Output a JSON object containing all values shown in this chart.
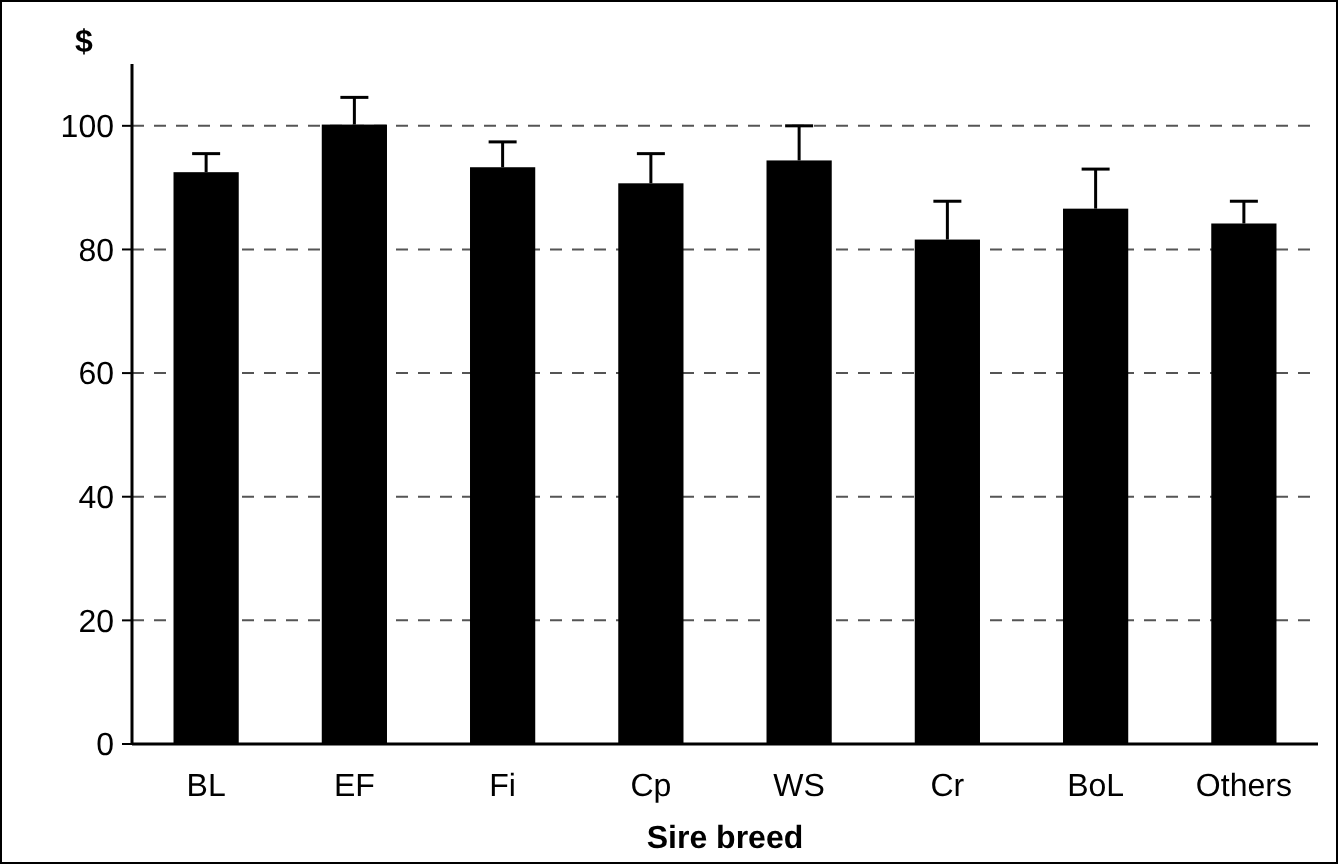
{
  "chart_data": {
    "type": "bar",
    "ylabel": "$",
    "xlabel": "Sire breed",
    "categories": [
      "BL",
      "EF",
      "Fi",
      "Cp",
      "WS",
      "Cr",
      "BoL",
      "Others"
    ],
    "values": [
      92.5,
      100.2,
      93.3,
      90.7,
      94.4,
      81.6,
      86.6,
      84.2
    ],
    "errors": [
      [
        92.5,
        95.5
      ],
      [
        100.2,
        104.6
      ],
      [
        93.3,
        97.4
      ],
      [
        90.7,
        95.5
      ],
      [
        94.4,
        100
      ],
      [
        81.6,
        87.8
      ],
      [
        86.6,
        93
      ],
      [
        84.2,
        87.8
      ]
    ],
    "color": "#000000",
    "ylim": [
      0,
      110
    ],
    "yticks": [
      0,
      20,
      40,
      60,
      80,
      100
    ],
    "grid": "y"
  }
}
